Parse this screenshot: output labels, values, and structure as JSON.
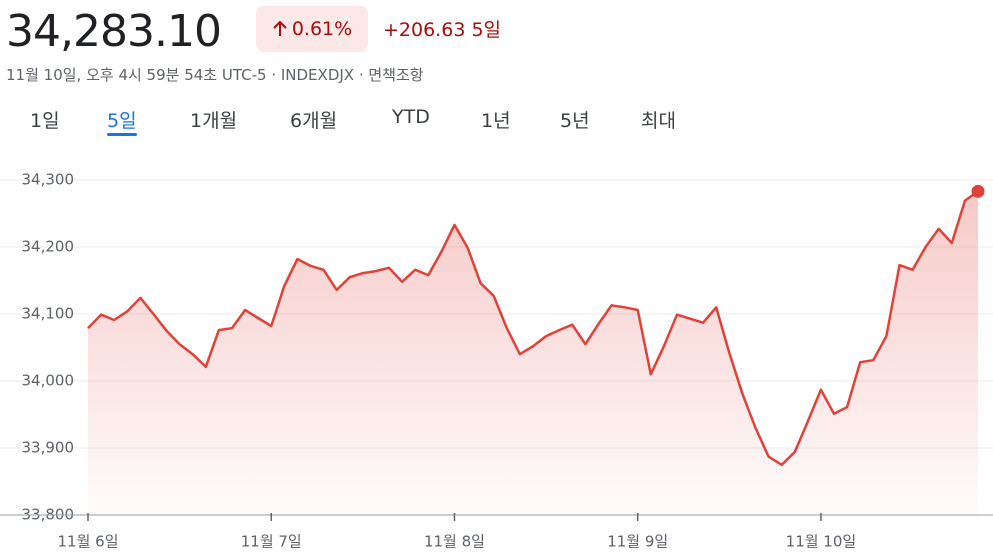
{
  "header": {
    "price": "34,283.10",
    "change_percent": "0.61%",
    "change": "+206.63",
    "period": "5일",
    "timestamp": "11월 10일, 오후 4시 59분 54초 UTC-5 · INDEXDJX · ",
    "disclaimer": "면책조항"
  },
  "tabs": [
    "1일",
    "5일",
    "1개월",
    "6개월",
    "YTD",
    "1년",
    "5년",
    "최대"
  ],
  "selected_tab": 1,
  "chart_data": {
    "type": "area",
    "color": "#e0423a",
    "grid": true,
    "values": [
      34079,
      34099,
      34091,
      34104,
      34124,
      34100,
      34075,
      34055,
      34040,
      34021,
      34076,
      34079,
      34106,
      34094,
      34082,
      34142,
      34182,
      34172,
      34166,
      34136,
      34155,
      34161,
      34164,
      34169,
      34148,
      34166,
      34158,
      34193,
      34233,
      34199,
      34146,
      34127,
      34079,
      34040,
      34052,
      34067,
      34076,
      34084,
      34055,
      34085,
      34113,
      34110,
      34106,
      34010,
      34052,
      34099,
      34093,
      34087,
      34110,
      34042,
      33981,
      33930,
      33887,
      33875,
      33894,
      33940,
      33987,
      33951,
      33961,
      34028,
      34031,
      34067,
      34173,
      34166,
      34200,
      34227,
      34206,
      34269,
      34283.1
    ],
    "xlim": [
      0,
      68
    ],
    "xticks": [
      {
        "value": 0,
        "label": "11월 6일"
      },
      {
        "value": 14,
        "label": "11월 7일"
      },
      {
        "value": 28,
        "label": "11월 8일"
      },
      {
        "value": 42,
        "label": "11월 9일"
      },
      {
        "value": 56,
        "label": "11월 10일"
      }
    ],
    "ylim": [
      33800,
      34300
    ],
    "yticks": [
      {
        "value": 33800,
        "label": "33,800"
      },
      {
        "value": 33900,
        "label": "33,900"
      },
      {
        "value": 34000,
        "label": "34,000"
      },
      {
        "value": 34100,
        "label": "34,100"
      },
      {
        "value": 34200,
        "label": "34,200"
      },
      {
        "value": 34300,
        "label": "34,300"
      }
    ]
  }
}
